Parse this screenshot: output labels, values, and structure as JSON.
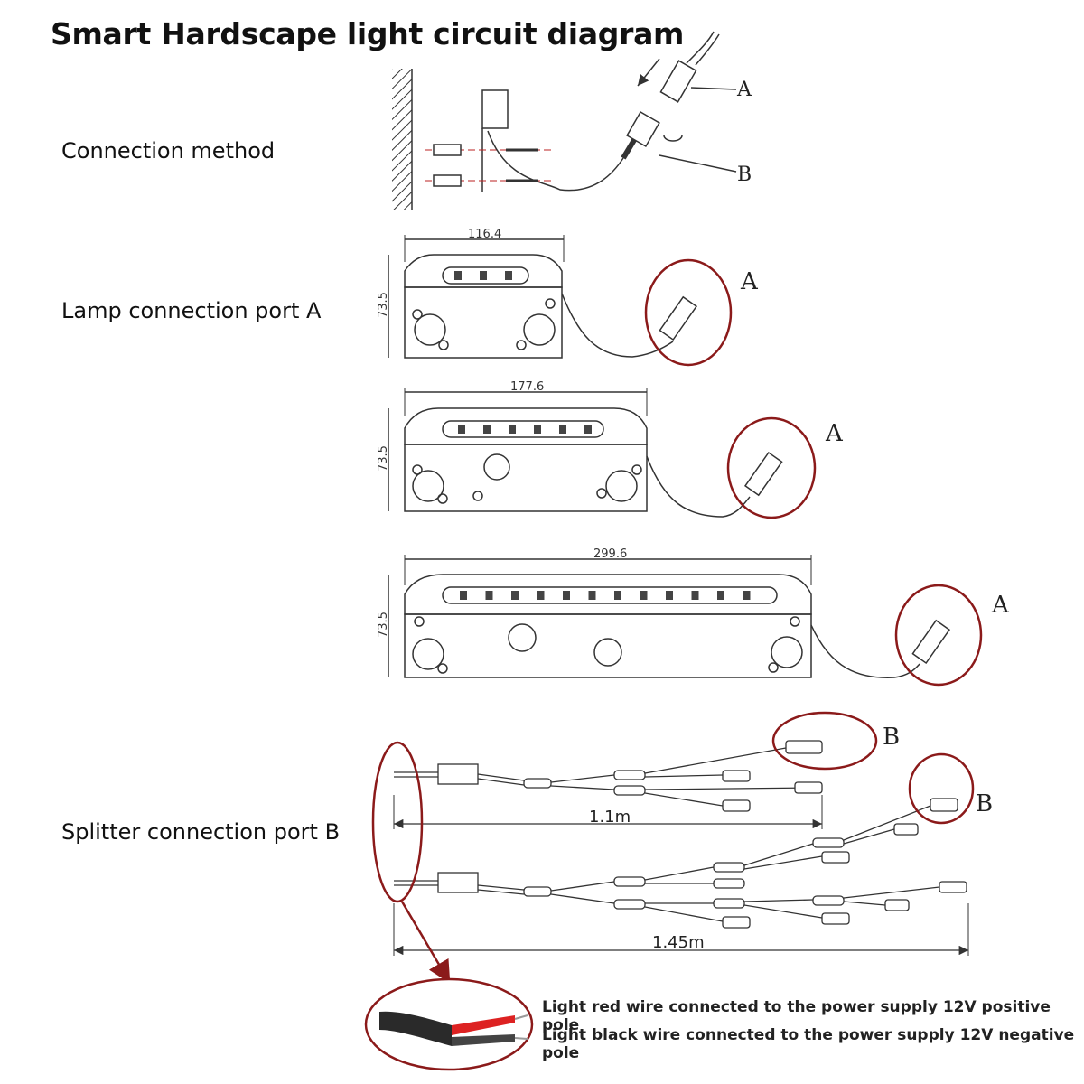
{
  "title": "Smart Hardscape light circuit diagram",
  "sections": {
    "connection_method": "Connection method",
    "lamp_port": "Lamp connection port A",
    "splitter_port": "Splitter connection port B"
  },
  "labels": {
    "a": "A",
    "b": "B"
  },
  "dimensions": {
    "lamp_small_width": "116.4",
    "lamp_medium_width": "177.6",
    "lamp_large_width": "299.6",
    "lamp_height": "73.5",
    "splitter_short": "1.1m",
    "splitter_long": "1.45m"
  },
  "notes": {
    "red_wire": "Light red wire connected to the power supply 12V positive pole",
    "black_wire": "Light black wire connected to the power supply 12V negative pole"
  },
  "colors": {
    "highlight": "#8b1a1a",
    "line": "#333333"
  }
}
